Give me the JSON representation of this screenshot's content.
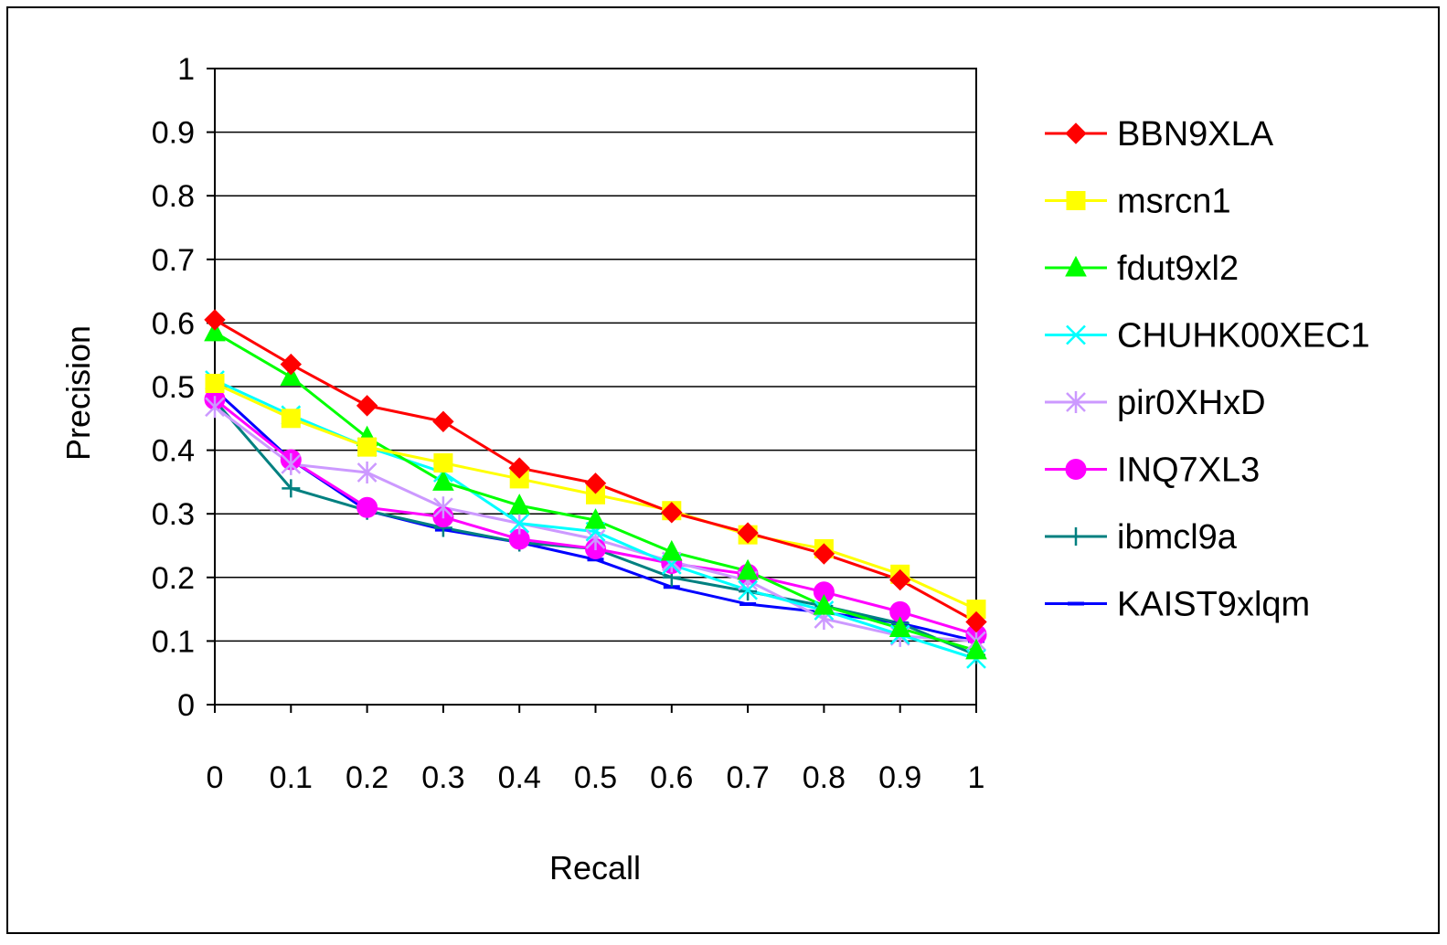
{
  "chart_data": {
    "type": "line",
    "title": "",
    "xlabel": "Recall",
    "ylabel": "Precision",
    "x": [
      0,
      0.1,
      0.2,
      0.3,
      0.4,
      0.5,
      0.6,
      0.7,
      0.8,
      0.9,
      1
    ],
    "x_tick_labels": [
      "0",
      "0.1",
      "0.2",
      "0.3",
      "0.4",
      "0.5",
      "0.6",
      "0.7",
      "0.8",
      "0.9",
      "1"
    ],
    "y_tick_labels": [
      "0",
      "0.1",
      "0.2",
      "0.3",
      "0.4",
      "0.5",
      "0.6",
      "0.7",
      "0.8",
      "0.9",
      "1"
    ],
    "xlim": [
      0,
      1
    ],
    "ylim": [
      0,
      1
    ],
    "grid": "horizontal",
    "legend_position": "right",
    "series": [
      {
        "name": "BBN9XLA",
        "color": "#ff0000",
        "marker": "diamond",
        "values": [
          0.605,
          0.535,
          0.47,
          0.445,
          0.372,
          0.348,
          0.302,
          0.27,
          0.237,
          0.196,
          0.13
        ]
      },
      {
        "name": "msrcn1",
        "color": "#ffff00",
        "marker": "square",
        "values": [
          0.505,
          0.45,
          0.405,
          0.38,
          0.355,
          0.33,
          0.305,
          0.267,
          0.245,
          0.205,
          0.15
        ]
      },
      {
        "name": "fdut9xl2",
        "color": "#00ff00",
        "marker": "triangle",
        "values": [
          0.585,
          0.515,
          0.42,
          0.35,
          0.313,
          0.29,
          0.24,
          0.21,
          0.155,
          0.12,
          0.085
        ]
      },
      {
        "name": "CHUHK00XEC1",
        "color": "#00ffff",
        "marker": "x",
        "values": [
          0.51,
          0.455,
          0.405,
          0.365,
          0.285,
          0.272,
          0.22,
          0.18,
          0.148,
          0.11,
          0.072
        ]
      },
      {
        "name": "pir0XHxD",
        "color": "#cc99ff",
        "marker": "asterisk",
        "values": [
          0.468,
          0.378,
          0.365,
          0.31,
          0.285,
          0.26,
          0.225,
          0.195,
          0.135,
          0.108,
          0.1
        ]
      },
      {
        "name": "INQ7XL3",
        "color": "#ff00ff",
        "marker": "circle",
        "values": [
          0.48,
          0.385,
          0.31,
          0.295,
          0.26,
          0.245,
          0.222,
          0.205,
          0.177,
          0.146,
          0.11
        ]
      },
      {
        "name": "ibmcl9a",
        "color": "#008080",
        "marker": "plus",
        "values": [
          0.478,
          0.34,
          0.305,
          0.278,
          0.255,
          0.245,
          0.2,
          0.178,
          0.155,
          0.128,
          0.078
        ]
      },
      {
        "name": "KAIST9xlqm",
        "color": "#0000ff",
        "marker": "dash",
        "values": [
          0.495,
          0.385,
          0.305,
          0.275,
          0.255,
          0.228,
          0.185,
          0.158,
          0.145,
          0.128,
          0.1
        ]
      }
    ]
  }
}
